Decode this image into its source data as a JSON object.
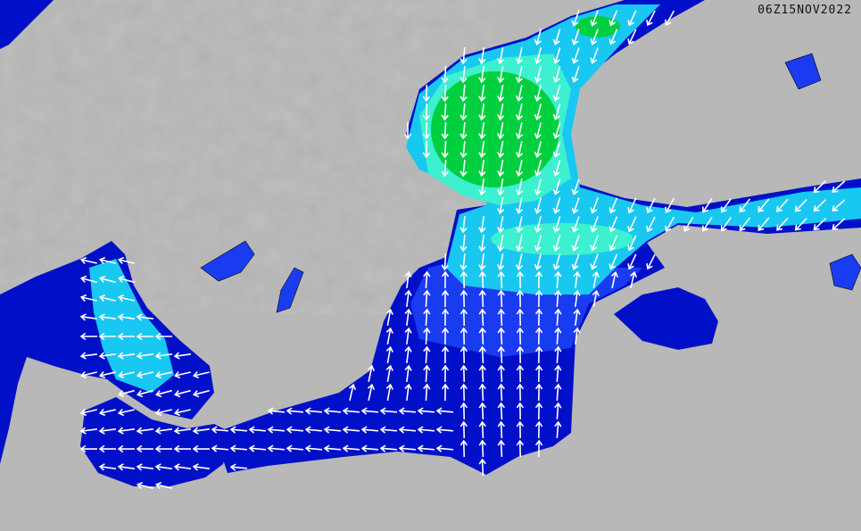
{
  "map": {
    "timestamp": "06Z15NOV2022",
    "colors": {
      "land": "#b8b8b8",
      "sea_low": "#0010c8",
      "sea_mid": "#1a3cf0",
      "sea_cyan": "#18c8f0",
      "sea_aqua": "#3cf0d0",
      "sea_high": "#00d040",
      "arrow": "#ffffff"
    },
    "arrow_icon": "wave-direction-arrow"
  }
}
